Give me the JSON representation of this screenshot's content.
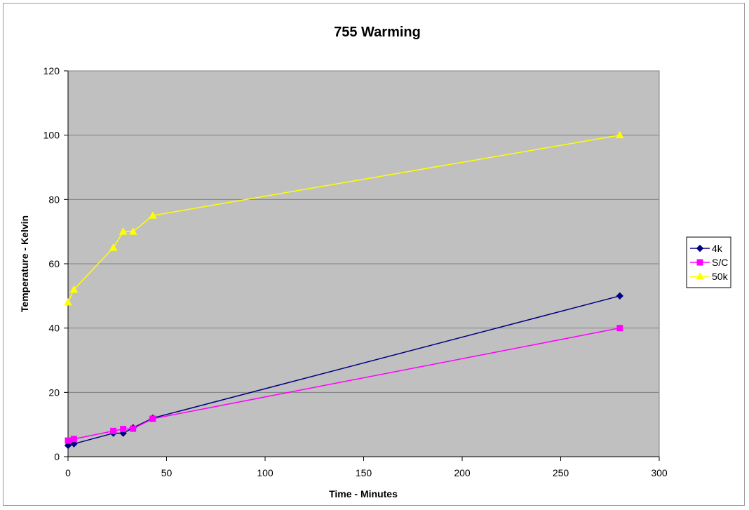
{
  "chart_data": {
    "type": "scatter",
    "title": "755 Warming",
    "xlabel": "Time  - Minutes",
    "ylabel": "Temperature  - Kelvin",
    "xlim": [
      0,
      300
    ],
    "ylim": [
      0,
      120
    ],
    "x_ticks": [
      0,
      50,
      100,
      150,
      200,
      250,
      300
    ],
    "y_ticks": [
      0,
      20,
      40,
      60,
      80,
      100,
      120
    ],
    "grid": "horizontal",
    "legend_position": "right",
    "plot_background": "#c0c0c0",
    "series": [
      {
        "name": "4k",
        "color": "#000080",
        "marker": "diamond",
        "points": [
          [
            0,
            3.5
          ],
          [
            3,
            4
          ],
          [
            23,
            7.3
          ],
          [
            28,
            7.3
          ],
          [
            33,
            9
          ],
          [
            43,
            12
          ],
          [
            280,
            50
          ]
        ]
      },
      {
        "name": "S/C",
        "color": "#ff00ff",
        "marker": "square",
        "points": [
          [
            0,
            5
          ],
          [
            3,
            5.5
          ],
          [
            23,
            8
          ],
          [
            28,
            8.6
          ],
          [
            33,
            8.7
          ],
          [
            43,
            11.8
          ],
          [
            280,
            40
          ]
        ]
      },
      {
        "name": "50k",
        "color": "#ffff00",
        "marker": "triangle",
        "points": [
          [
            0,
            48
          ],
          [
            3,
            52
          ],
          [
            23,
            65
          ],
          [
            28,
            70
          ],
          [
            33,
            70
          ],
          [
            43,
            75
          ],
          [
            280,
            100
          ]
        ]
      }
    ]
  }
}
